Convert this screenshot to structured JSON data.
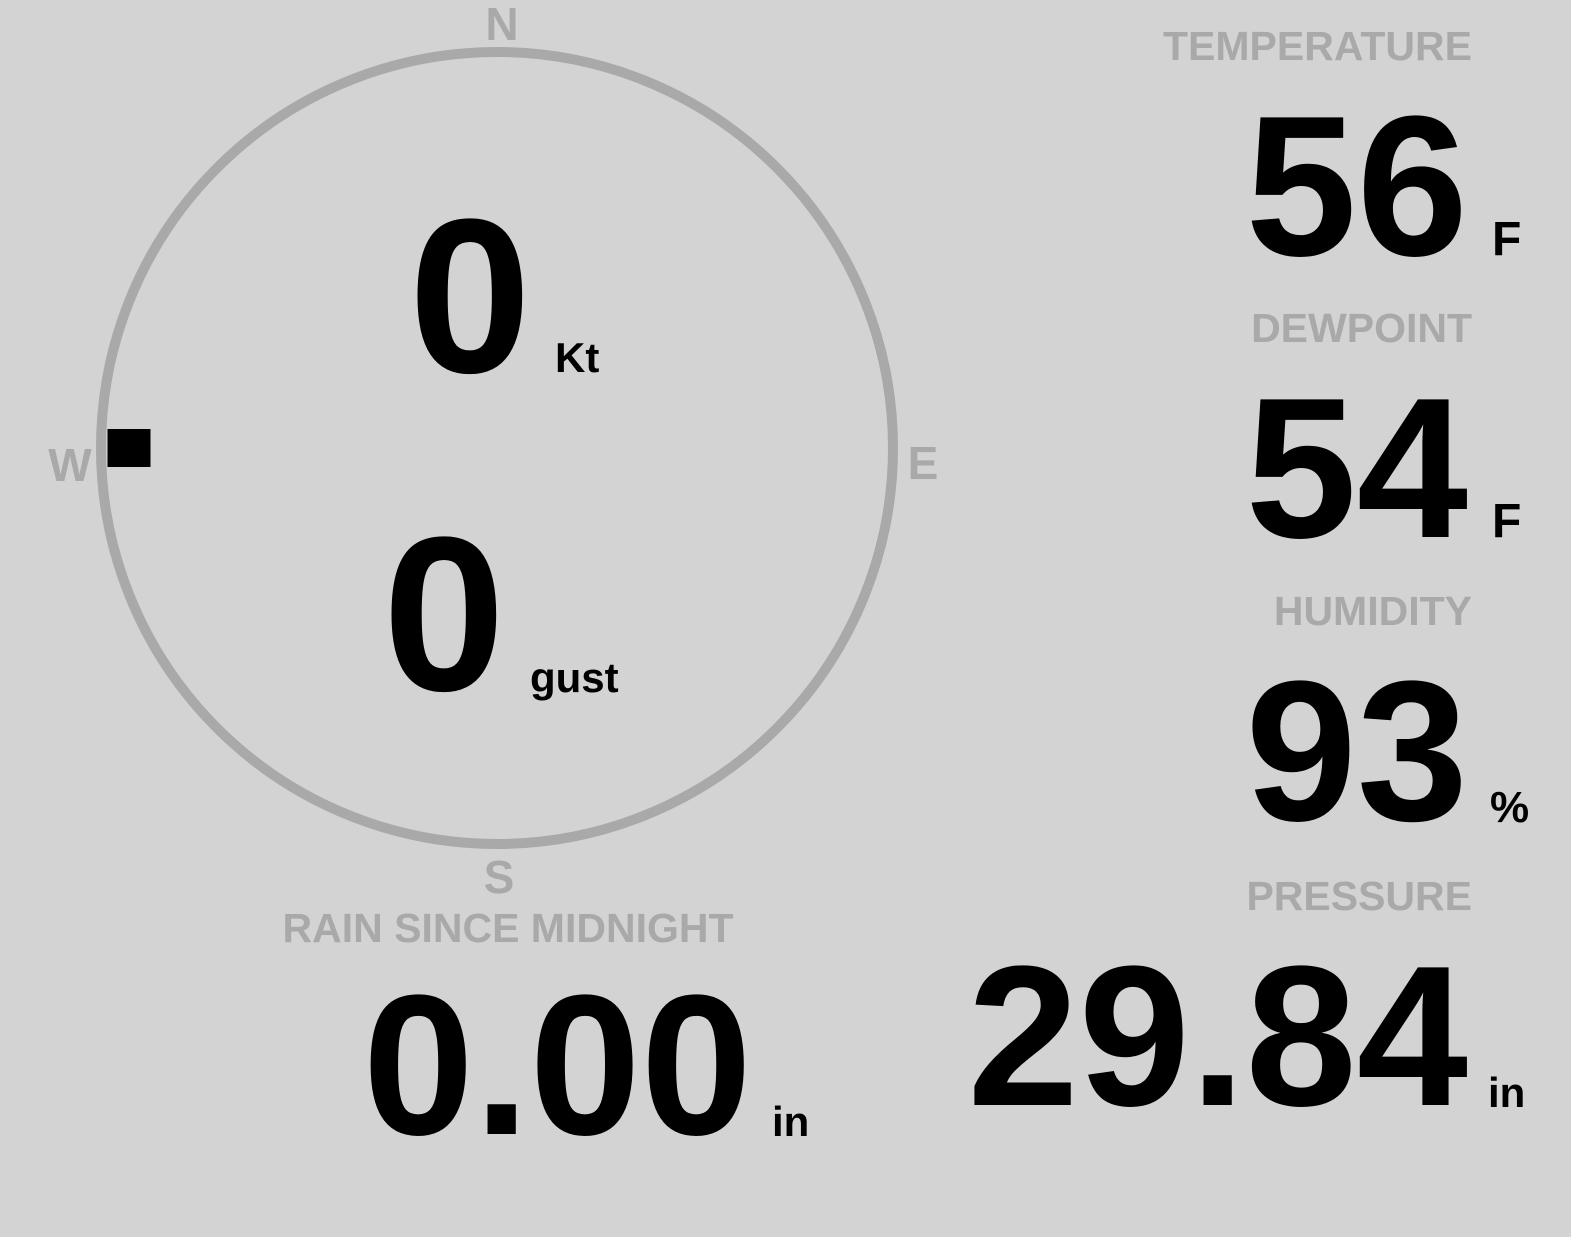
{
  "colors": {
    "background": "#d3d3d3",
    "muted": "#a9a9a9",
    "text": "#000000"
  },
  "compass": {
    "north": "N",
    "south": "S",
    "east": "E",
    "west": "W",
    "wind_direction": "W",
    "wind_direction_degrees": 270,
    "speed": "0",
    "speed_unit": "Kt",
    "gust": "0",
    "gust_unit": "gust"
  },
  "temperature": {
    "label": "TEMPERATURE",
    "value": "56",
    "unit": "F"
  },
  "dewpoint": {
    "label": "DEWPOINT",
    "value": "54",
    "unit": "F"
  },
  "humidity": {
    "label": "HUMIDITY",
    "value": "93",
    "unit": "%"
  },
  "pressure": {
    "label": "PRESSURE",
    "value": "29.84",
    "unit": "in"
  },
  "rain": {
    "label": "RAIN SINCE MIDNIGHT",
    "value": "0.00",
    "unit": "in"
  }
}
